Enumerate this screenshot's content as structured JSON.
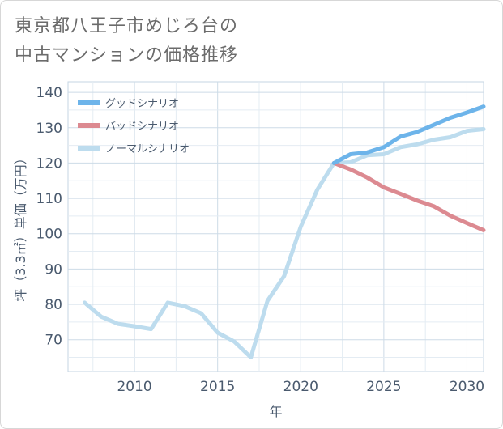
{
  "title": {
    "line1": "東京都八王子市めじろ台の",
    "line2": "中古マンションの価格推移"
  },
  "chart_data": {
    "type": "line",
    "xlabel": "年",
    "ylabel": "坪（3.3㎡）単価（万円）",
    "xlim": [
      2006,
      2031
    ],
    "ylim": [
      61,
      143
    ],
    "xticks": [
      2010,
      2015,
      2020,
      2025,
      2030
    ],
    "yticks": [
      70,
      80,
      90,
      100,
      110,
      120,
      130,
      140
    ],
    "grid": true,
    "legend_position": "top-left",
    "series": [
      {
        "name": "グッドシナリオ",
        "color": "#6db4ea",
        "points": [
          [
            2022,
            120
          ],
          [
            2023,
            122.5
          ],
          [
            2024,
            123
          ],
          [
            2025,
            124.5
          ],
          [
            2026,
            127.5
          ],
          [
            2027,
            128.8
          ],
          [
            2028,
            130.8
          ],
          [
            2029,
            132.8
          ],
          [
            2030,
            134.3
          ],
          [
            2031,
            136
          ]
        ]
      },
      {
        "name": "バッドシナリオ",
        "color": "#dc8a91",
        "points": [
          [
            2022,
            120
          ],
          [
            2023,
            118.2
          ],
          [
            2024,
            115.9
          ],
          [
            2025,
            113.1
          ],
          [
            2026,
            111.3
          ],
          [
            2027,
            109.4
          ],
          [
            2028,
            107.8
          ],
          [
            2029,
            105.1
          ],
          [
            2030,
            103
          ],
          [
            2031,
            101
          ]
        ]
      },
      {
        "name": "ノーマルシナリオ",
        "color": "#bddcee",
        "points": [
          [
            2007,
            80.5
          ],
          [
            2008,
            76.5
          ],
          [
            2009,
            74.5
          ],
          [
            2010,
            73.8
          ],
          [
            2011,
            73
          ],
          [
            2012,
            80.5
          ],
          [
            2013,
            79.5
          ],
          [
            2014,
            77.5
          ],
          [
            2015,
            72
          ],
          [
            2016,
            69.5
          ],
          [
            2017,
            65
          ],
          [
            2018,
            81
          ],
          [
            2019,
            88
          ],
          [
            2020,
            102
          ],
          [
            2021,
            112.5
          ],
          [
            2022,
            120
          ],
          [
            2023,
            120.2
          ],
          [
            2024,
            122.2
          ],
          [
            2025,
            122.5
          ],
          [
            2026,
            124.5
          ],
          [
            2027,
            125.3
          ],
          [
            2028,
            126.6
          ],
          [
            2029,
            127.3
          ],
          [
            2030,
            129.1
          ],
          [
            2031,
            129.6
          ]
        ]
      }
    ]
  }
}
